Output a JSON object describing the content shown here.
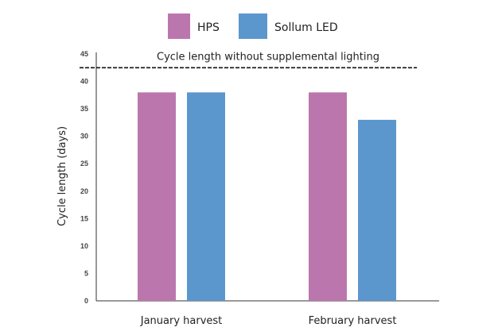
{
  "chart_data": {
    "type": "bar",
    "categories": [
      "January harvest",
      "February harvest"
    ],
    "series": [
      {
        "name": "HPS",
        "values": [
          38,
          38
        ],
        "color": "#bb77ad"
      },
      {
        "name": "Sollum LED",
        "values": [
          38,
          33
        ],
        "color": "#5b97cc"
      }
    ],
    "xlabel": "",
    "ylabel": "Cycle length (days)",
    "ylim": [
      0,
      45
    ],
    "yticks": [
      0,
      5,
      10,
      15,
      20,
      25,
      30,
      35,
      40,
      45
    ],
    "grid": false,
    "legend": "top-center",
    "reference_line": {
      "label": "Cycle length without supplemental lighting",
      "value": 42.5,
      "style": "dashed"
    }
  }
}
